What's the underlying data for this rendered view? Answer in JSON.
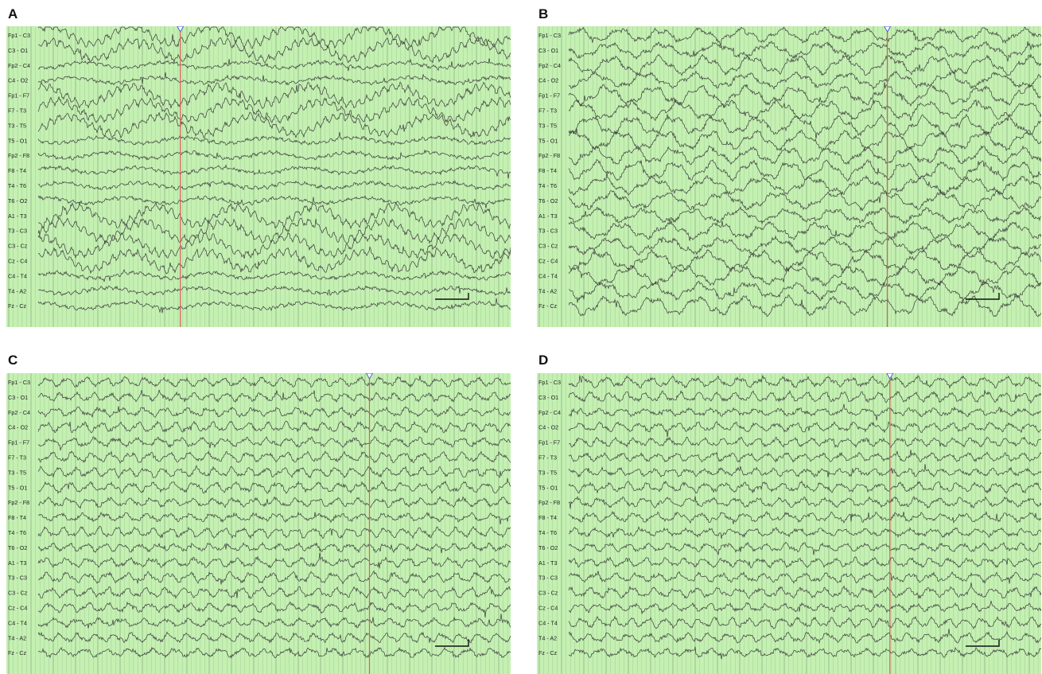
{
  "panels": [
    {
      "letter": "A",
      "marker_pos": 0.345,
      "style": "slow_rhythmic"
    },
    {
      "letter": "B",
      "marker_pos": 0.695,
      "style": "mixed"
    },
    {
      "letter": "C",
      "marker_pos": 0.72,
      "style": "fast"
    },
    {
      "letter": "D",
      "marker_pos": 0.7,
      "style": "fast"
    }
  ],
  "channels": [
    "Fp1 - C3",
    "C3 - O1",
    "Fp2 - C4",
    "C4 - O2",
    "Fp1 - F7",
    "F7 - T3",
    "T3 - T5",
    "T5 - O1",
    "Fp2 - F8",
    "F8 - T4",
    "T4 - T6",
    "T6 - O2",
    "A1 - T3",
    "T3 - C3",
    "C3 - Cz",
    "Cz - C4",
    "C4 - T4",
    "T4 - A2",
    "Fz - Cz"
  ],
  "colors": {
    "background": "#c4f0b2",
    "gridline": "#8cb082",
    "trace": "#3a3a3a",
    "marker": "#e05a5a",
    "marker_head": "#4a5fd0"
  },
  "chart_data": [
    {
      "type": "eeg",
      "panel": "A",
      "channels_ref": "channels"
    },
    {
      "type": "eeg",
      "panel": "B",
      "channels_ref": "channels"
    },
    {
      "type": "eeg",
      "panel": "C",
      "channels_ref": "channels"
    },
    {
      "type": "eeg",
      "panel": "D",
      "channels_ref": "channels"
    }
  ]
}
